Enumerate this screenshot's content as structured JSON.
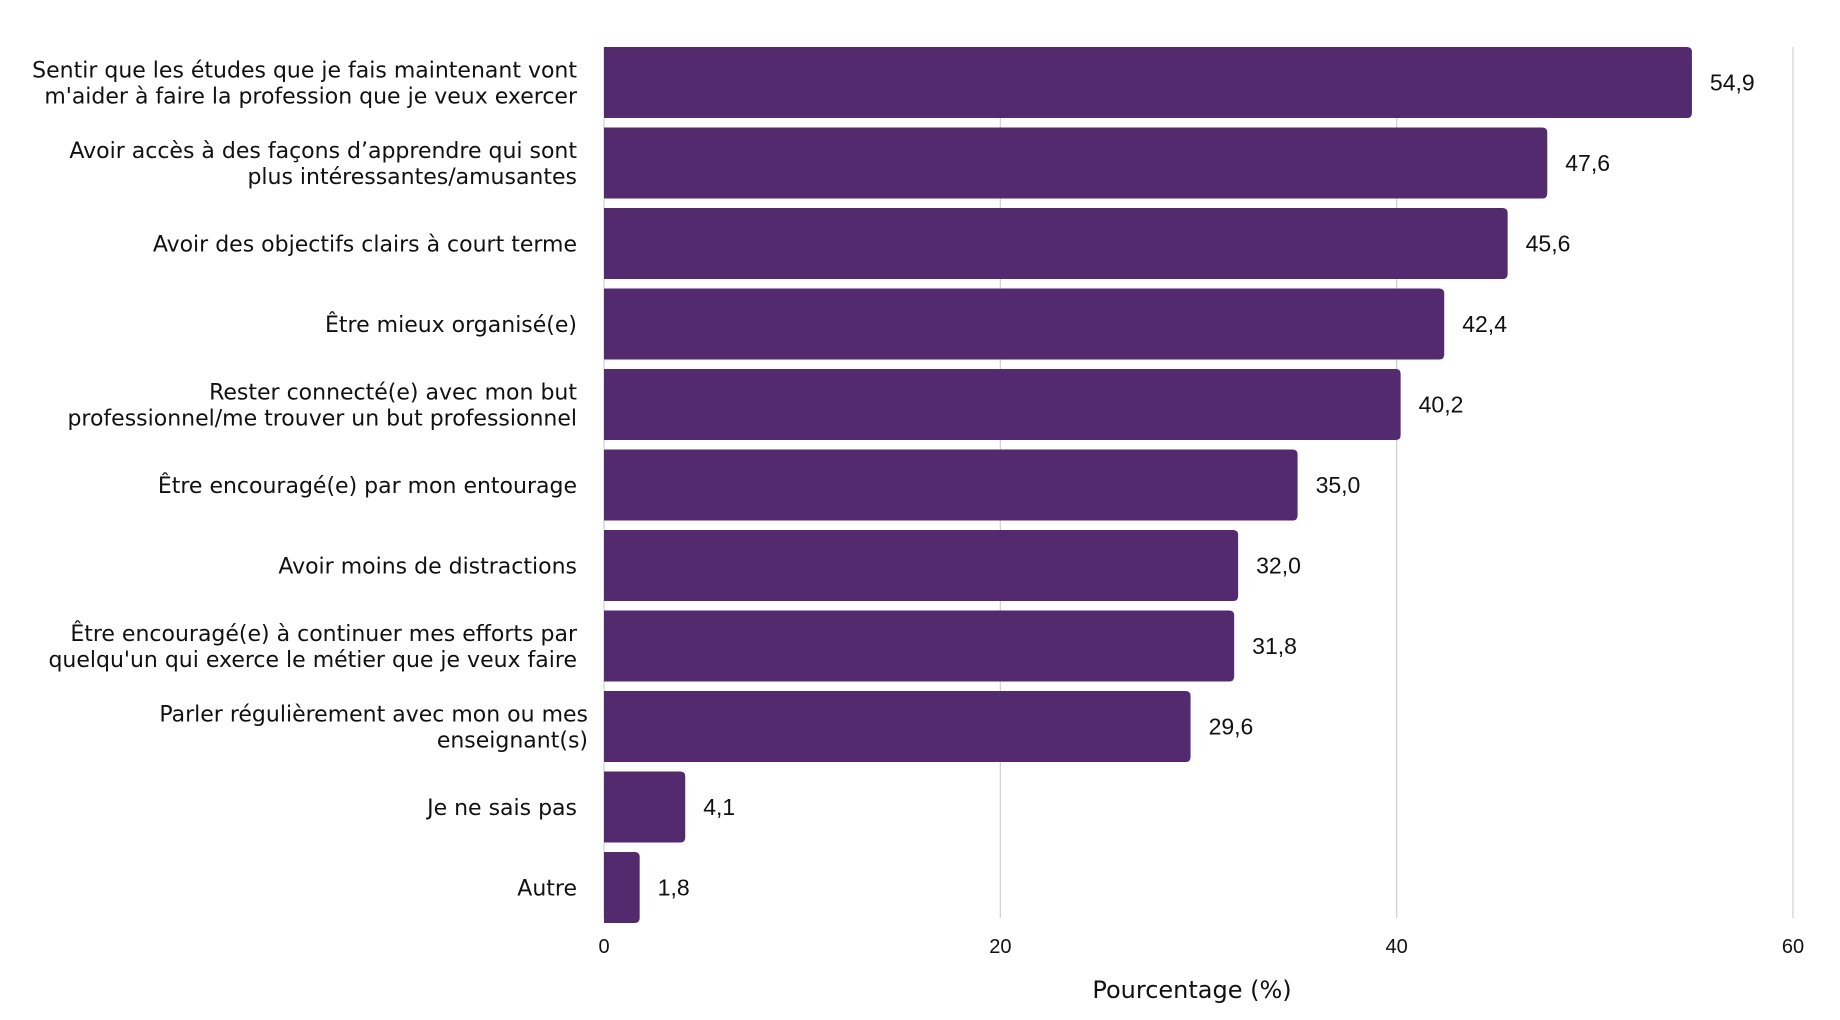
{
  "chart_data": {
    "type": "bar",
    "orientation": "horizontal",
    "title": "",
    "xlabel": "Pourcentage (%)",
    "ylabel": "",
    "xlim": [
      0,
      60
    ],
    "xticks": [
      0,
      20,
      40,
      60
    ],
    "xtick_labels": [
      "0",
      "20",
      "40",
      "60"
    ],
    "grid": true,
    "bar_color": "#542a6e",
    "categories": [
      [
        "Sentir que les études que je fais maintenant vont",
        "m'aider à faire la profession que je veux exercer"
      ],
      [
        "Avoir accès à des façons d’apprendre qui sont",
        "plus intéressantes/amusantes"
      ],
      [
        "Avoir des objectifs clairs à court terme"
      ],
      [
        "Être mieux organisé(e)"
      ],
      [
        "Rester connecté(e) avec mon but",
        "professionnel/me trouver un but professionnel"
      ],
      [
        "Être encouragé(e) par mon entourage"
      ],
      [
        "Avoir moins de distractions"
      ],
      [
        "Être encouragé(e) à continuer mes efforts par",
        "quelqu'un qui exerce le métier que je veux faire"
      ],
      [
        "Parler régulièrement avec mon ou mes",
        "enseignant(s)"
      ],
      [
        "Je ne sais pas"
      ],
      [
        "Autre"
      ]
    ],
    "values": [
      54.9,
      47.6,
      45.6,
      42.4,
      40.2,
      35.0,
      32.0,
      31.8,
      29.6,
      4.1,
      1.8
    ],
    "value_labels": [
      "54,9",
      "47,6",
      "45,6",
      "42,4",
      "40,2",
      "35,0",
      "32,0",
      "31,8",
      "29,6",
      "4,1",
      "1,8"
    ]
  }
}
